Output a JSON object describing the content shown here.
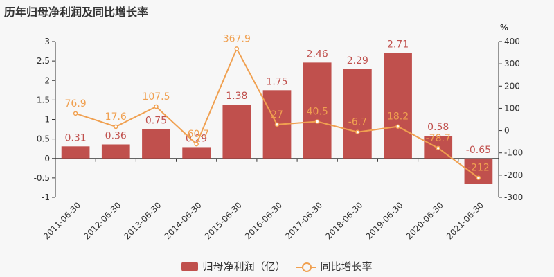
{
  "chart_data": {
    "type": "bar",
    "title": "历年归母净利润及同比增长率",
    "categories": [
      "2011-06-30",
      "2012-06-30",
      "2013-06-30",
      "2014-06-30",
      "2015-06-30",
      "2016-06-30",
      "2017-06-30",
      "2018-06-30",
      "2019-06-30",
      "2020-06-30",
      "2021-06-30"
    ],
    "series": [
      {
        "name": "归母净利润（亿）",
        "type": "bar",
        "axis": "left",
        "values": [
          0.31,
          0.36,
          0.75,
          0.29,
          1.38,
          1.75,
          2.46,
          2.29,
          2.71,
          0.58,
          -0.65
        ],
        "labels": [
          "0.31",
          "0.36",
          "0.75",
          "0.29",
          "1.38",
          "1.75",
          "2.46",
          "2.29",
          "2.71",
          "0.58",
          "-0.65"
        ]
      },
      {
        "name": "同比增长率",
        "type": "line",
        "axis": "right",
        "values": [
          76.9,
          17.6,
          107.5,
          -60.7,
          367.9,
          27,
          40.5,
          -6.7,
          18.2,
          -78.7,
          -212
        ],
        "labels": [
          "76.9",
          "17.6",
          "107.5",
          "-60.7",
          "367.9",
          "27",
          "40.5",
          "-6.7",
          "18.2",
          "-78.7",
          "-212"
        ]
      }
    ],
    "y_left": {
      "lim": [
        -1,
        3
      ],
      "ticks": [
        "-1",
        "-0.5",
        "0",
        "0.5",
        "1",
        "1.5",
        "2",
        "2.5",
        "3"
      ]
    },
    "y_right": {
      "lim": [
        -300,
        400
      ],
      "unit": "%",
      "ticks": [
        "-300",
        "-200",
        "-100",
        "0",
        "100",
        "200",
        "300",
        "400"
      ]
    },
    "grid": false,
    "legend_position": "bottom",
    "colors": {
      "bar": "#c0504d",
      "line": "#f0a050"
    }
  }
}
